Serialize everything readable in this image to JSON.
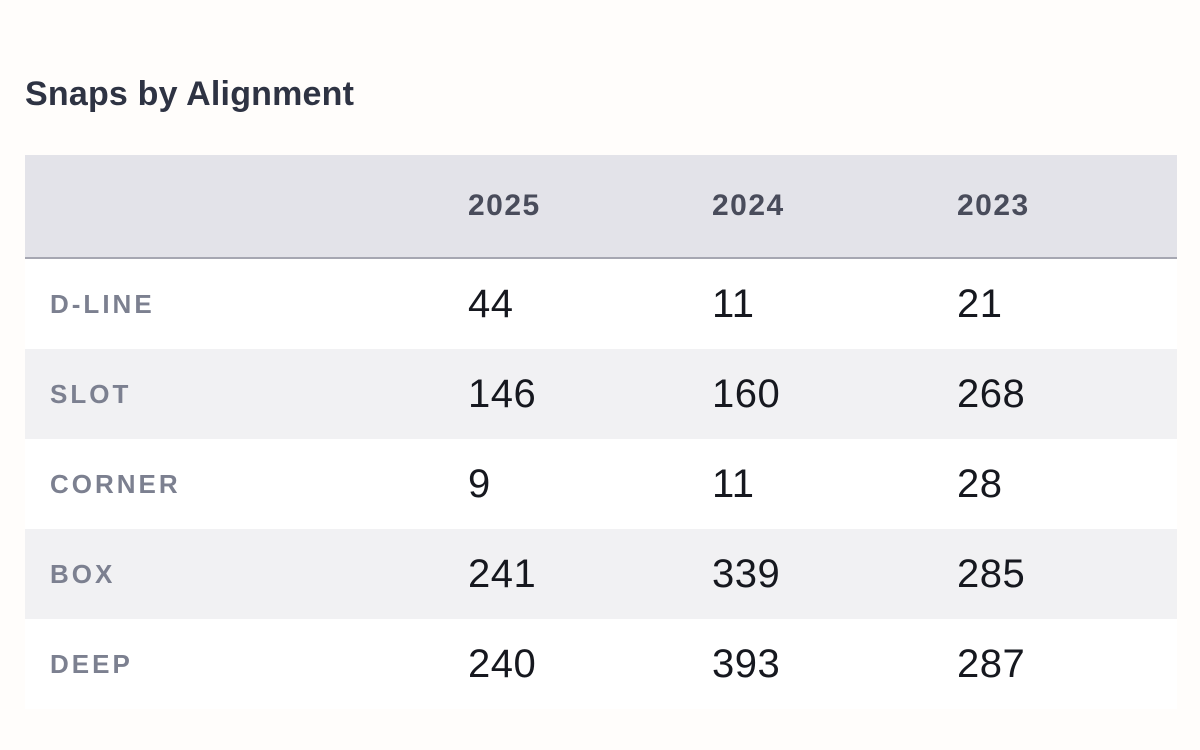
{
  "title": "Snaps by Alignment",
  "table": {
    "columns": [
      "2025",
      "2024",
      "2023"
    ],
    "rows": [
      {
        "label": "D-LINE",
        "values": [
          "44",
          "11",
          "21"
        ]
      },
      {
        "label": "SLOT",
        "values": [
          "146",
          "160",
          "268"
        ]
      },
      {
        "label": "CORNER",
        "values": [
          "9",
          "11",
          "28"
        ]
      },
      {
        "label": "BOX",
        "values": [
          "241",
          "339",
          "285"
        ]
      },
      {
        "label": "DEEP",
        "values": [
          "240",
          "393",
          "287"
        ]
      }
    ]
  },
  "chart_data": {
    "type": "table",
    "title": "Snaps by Alignment",
    "columns": [
      "2025",
      "2024",
      "2023"
    ],
    "row_labels": [
      "D-LINE",
      "SLOT",
      "CORNER",
      "BOX",
      "DEEP"
    ],
    "series": [
      {
        "name": "2025",
        "values": [
          44,
          146,
          9,
          241,
          240
        ]
      },
      {
        "name": "2024",
        "values": [
          11,
          160,
          11,
          339,
          393
        ]
      },
      {
        "name": "2023",
        "values": [
          21,
          268,
          28,
          285,
          287
        ]
      }
    ]
  },
  "colors": {
    "page_background": "#fffdfb",
    "header_background": "#e3e3e9",
    "stripe_background": "#f1f1f3",
    "header_border": "#a6a7b2",
    "title_text": "#2e3343",
    "column_header_text": "#494c5b",
    "row_label_text": "#7c8090",
    "value_text": "#16181f"
  }
}
